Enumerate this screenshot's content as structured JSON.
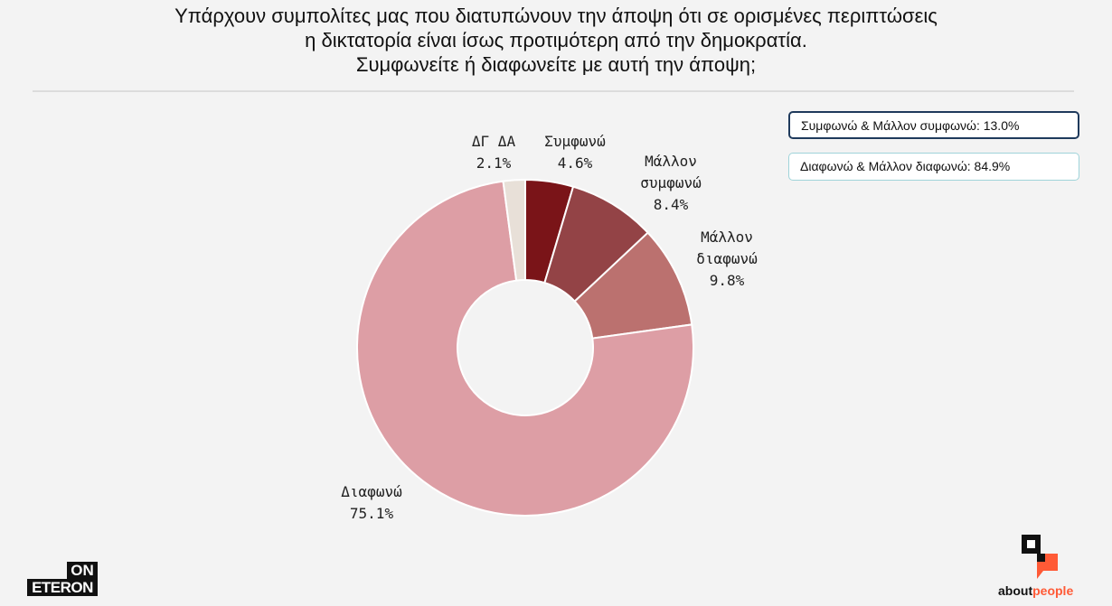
{
  "title_lines": [
    "Υπάρχουν συμπολίτες μας που διατυπώνουν την άποψη ότι σε ορισμένες περιπτώσεις",
    "η δικτατορία είναι ίσως προτιμότερη από την δημοκρατία.",
    "Συμφωνείτε ή διαφωνείτε με αυτή την άποψη;"
  ],
  "chart_data": {
    "type": "pie",
    "donut": true,
    "start_angle_deg": 0,
    "direction": "clockwise",
    "slices": [
      {
        "label_lines": [
          "Συμφωνώ"
        ],
        "value": 4.6,
        "value_label": "4.6%",
        "color": "#7a1418"
      },
      {
        "label_lines": [
          "Μάλλον",
          "συμφωνώ"
        ],
        "value": 8.4,
        "value_label": "8.4%",
        "color": "#934346"
      },
      {
        "label_lines": [
          "Μάλλον",
          "διαφωνώ"
        ],
        "value": 9.8,
        "value_label": "9.8%",
        "color": "#bb716f"
      },
      {
        "label_lines": [
          "Διαφωνώ"
        ],
        "value": 75.1,
        "value_label": "75.1%",
        "color": "#dd9ea5"
      },
      {
        "label_lines": [
          "ΔΓ ΔΑ"
        ],
        "value": 2.1,
        "value_label": "2.1%",
        "color": "#e8e0d8"
      }
    ]
  },
  "summary": {
    "agree": "Συμφωνώ & Μάλλον συμφωνώ: 13.0%",
    "disagree": "Διαφωνώ & Μάλλον διαφωνώ: 84.9%"
  },
  "logos": {
    "onet_top": "ON",
    "onet_bottom": "ETERON",
    "about": "about",
    "people": "people",
    "brand_orange": "#ff5a36"
  }
}
